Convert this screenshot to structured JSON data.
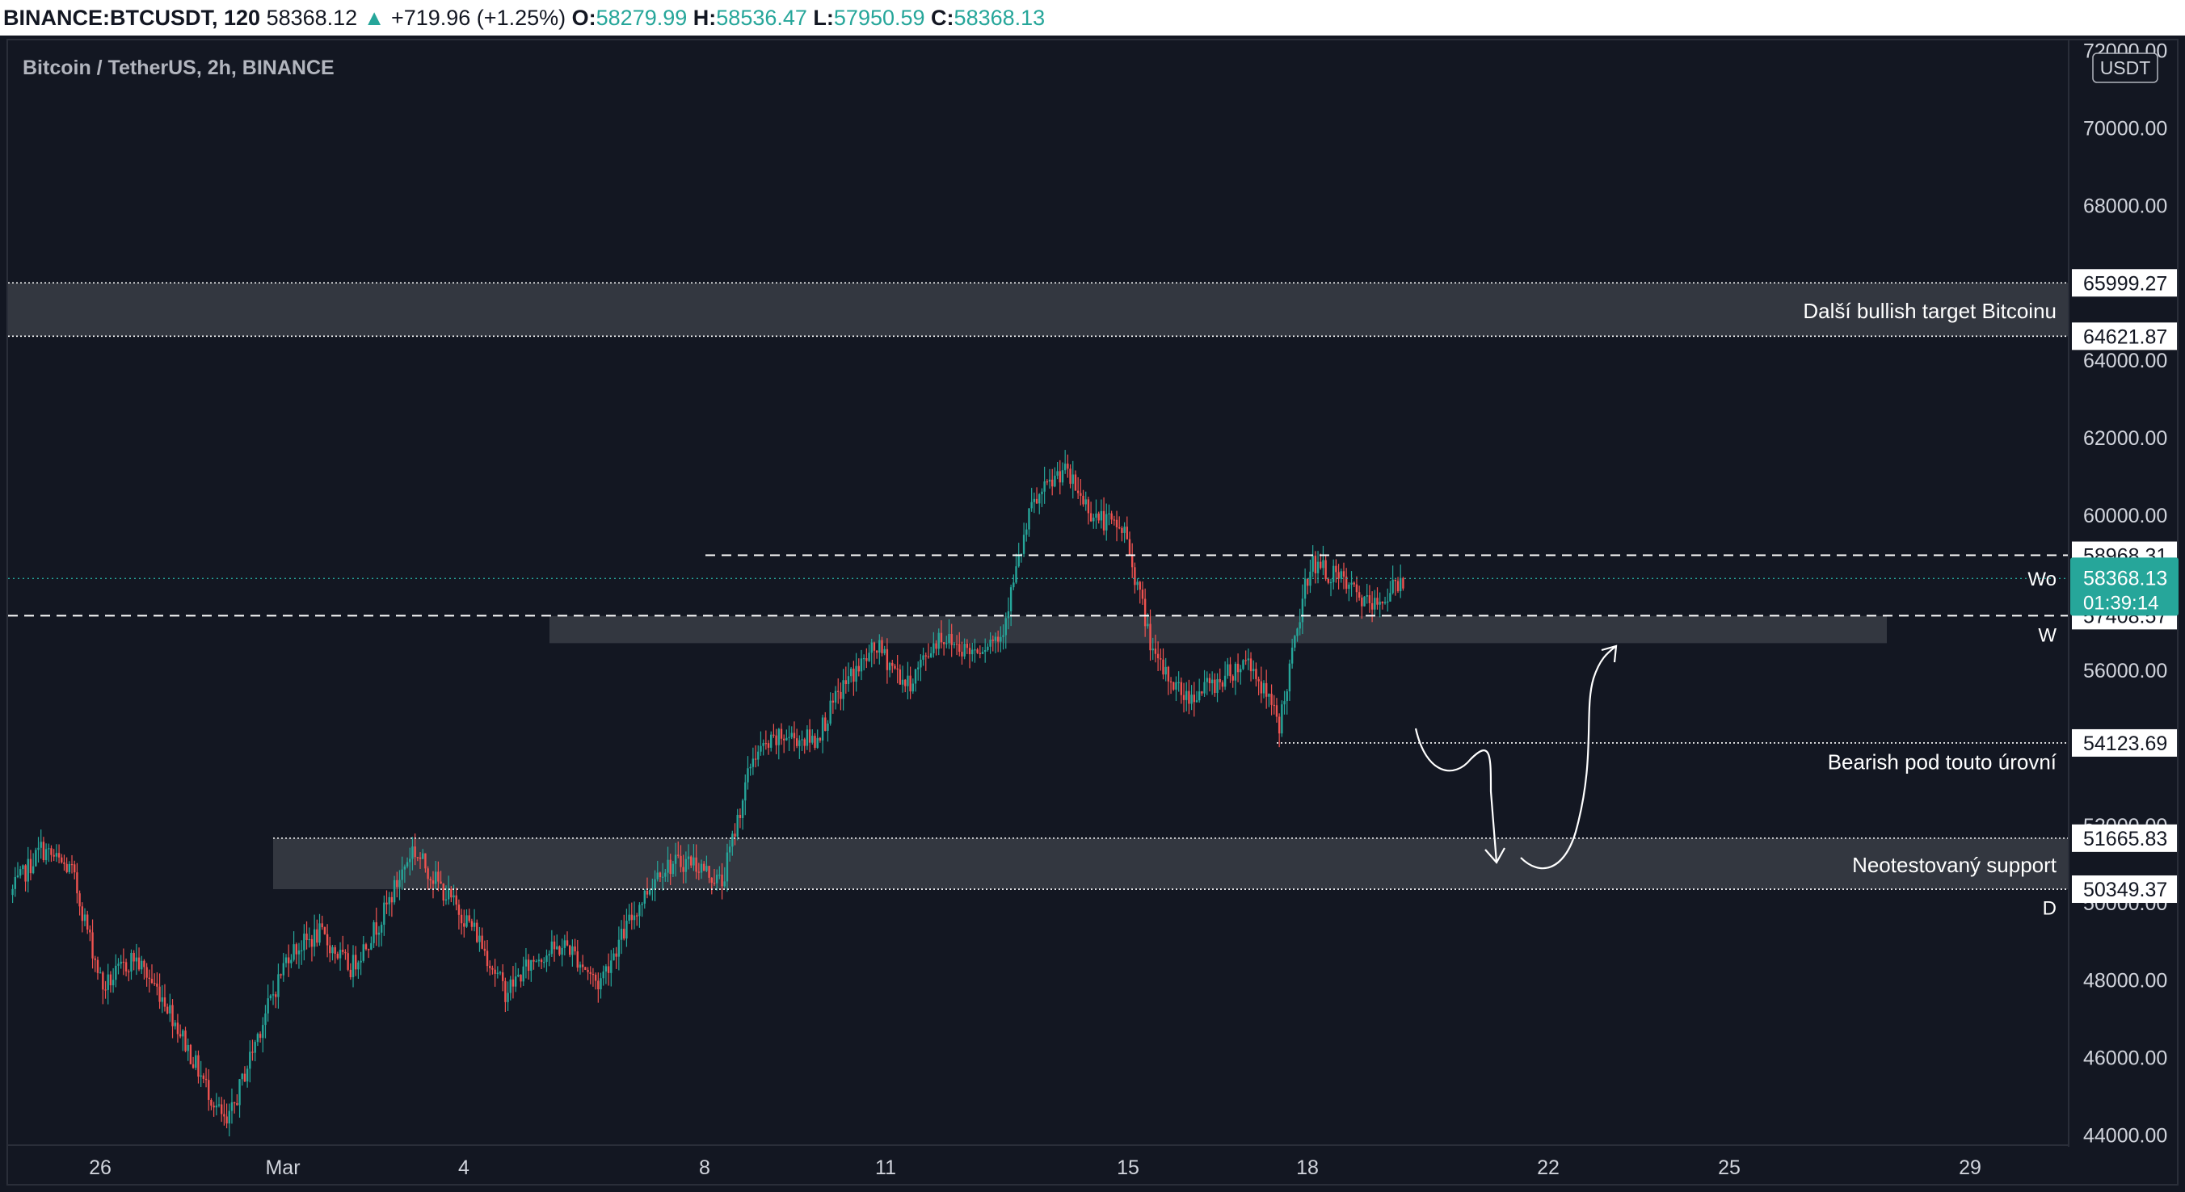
{
  "header": {
    "symbol": "BINANCE:BTCUSDT, 120",
    "last": "58368.12",
    "change_icon": "triangle-up-icon",
    "change": "+719.96 (+1.25%)",
    "o_label": "O:",
    "o": "58279.99",
    "h_label": "H:",
    "h": "58536.47",
    "l_label": "L:",
    "l": "57950.59",
    "c_label": "C:",
    "c": "58368.13"
  },
  "pane_title": "Bitcoin / TetherUS, 2h, BINANCE",
  "colors": {
    "background": "#131722",
    "up": "#26a69a",
    "down": "#ef5350",
    "zone": "#3a3d45",
    "axis_text": "#d1d4dc",
    "label_bg": "#ffffff"
  },
  "chart_data": {
    "type": "candlestick",
    "currency_label": "USDT",
    "ylim": [
      43700,
      72300
    ],
    "y_ticks": [
      "72000.00",
      "70000.00",
      "68000.00",
      "64000.00",
      "62000.00",
      "60000.00",
      "56000.00",
      "52000.00",
      "50000.00",
      "48000.00",
      "46000.00",
      "44000.00"
    ],
    "x_ticks": [
      "26",
      "Mar",
      "4",
      "8",
      "11",
      "15",
      "18",
      "22",
      "25",
      "29"
    ],
    "series_keypoints": [
      {
        "t": 0,
        "p": 50200
      },
      {
        "t": 12,
        "p": 51400
      },
      {
        "t": 24,
        "p": 50800
      },
      {
        "t": 36,
        "p": 47800
      },
      {
        "t": 48,
        "p": 48600
      },
      {
        "t": 60,
        "p": 47500
      },
      {
        "t": 72,
        "p": 45800
      },
      {
        "t": 84,
        "p": 44200
      },
      {
        "t": 96,
        "p": 46600
      },
      {
        "t": 108,
        "p": 48700
      },
      {
        "t": 120,
        "p": 49200
      },
      {
        "t": 132,
        "p": 48300
      },
      {
        "t": 144,
        "p": 49600
      },
      {
        "t": 156,
        "p": 51400
      },
      {
        "t": 168,
        "p": 50300
      },
      {
        "t": 180,
        "p": 49300
      },
      {
        "t": 192,
        "p": 47700
      },
      {
        "t": 204,
        "p": 48600
      },
      {
        "t": 216,
        "p": 48900
      },
      {
        "t": 228,
        "p": 47900
      },
      {
        "t": 240,
        "p": 49500
      },
      {
        "t": 252,
        "p": 50900
      },
      {
        "t": 264,
        "p": 51100
      },
      {
        "t": 276,
        "p": 50500
      },
      {
        "t": 288,
        "p": 53800
      },
      {
        "t": 300,
        "p": 54300
      },
      {
        "t": 312,
        "p": 54200
      },
      {
        "t": 324,
        "p": 55700
      },
      {
        "t": 336,
        "p": 56600
      },
      {
        "t": 348,
        "p": 55600
      },
      {
        "t": 360,
        "p": 56900
      },
      {
        "t": 372,
        "p": 56500
      },
      {
        "t": 384,
        "p": 56900
      },
      {
        "t": 396,
        "p": 60200
      },
      {
        "t": 408,
        "p": 61200
      },
      {
        "t": 420,
        "p": 60000
      },
      {
        "t": 432,
        "p": 59600
      },
      {
        "t": 444,
        "p": 56200
      },
      {
        "t": 456,
        "p": 55300
      },
      {
        "t": 468,
        "p": 55700
      },
      {
        "t": 480,
        "p": 56300
      },
      {
        "t": 492,
        "p": 54600
      },
      {
        "t": 504,
        "p": 58800
      },
      {
        "t": 516,
        "p": 58300
      },
      {
        "t": 528,
        "p": 57600
      },
      {
        "t": 540,
        "p": 58368
      }
    ],
    "horizontal_levels": [
      {
        "label": "65999.27",
        "price": 65999.27,
        "style": "dotted"
      },
      {
        "label": "64621.87",
        "price": 64621.87,
        "style": "dotted"
      },
      {
        "label": "58968.31",
        "price": 58968.31,
        "style": "dashed"
      },
      {
        "label": "57408.57",
        "price": 57408.57,
        "style": "dashed"
      },
      {
        "label": "54123.69",
        "price": 54123.69,
        "style": "dotted"
      },
      {
        "label": "51665.83",
        "price": 51665.83,
        "style": "dotted"
      },
      {
        "label": "50349.37",
        "price": 50349.37,
        "style": "dotted"
      }
    ],
    "last_price": {
      "value": "58368.13",
      "countdown": "01:39:14",
      "price": 58368.13
    },
    "zones": [
      {
        "name": "bullish-target-zone",
        "from_price": 64621.87,
        "to_price": 65999.27
      },
      {
        "name": "resistance-zone",
        "from_price": 56700,
        "to_price": 57400
      },
      {
        "name": "support-zone",
        "from_price": 50349.37,
        "to_price": 51665.83
      }
    ],
    "annotations": [
      {
        "text": "Další bullish target Bitcoinu",
        "price": 65300
      },
      {
        "text": "Bearish pod touto úrovní",
        "price": 53650
      },
      {
        "text": "Neotestovaný support",
        "price": 51000
      }
    ],
    "level_tags": [
      {
        "text": "Wo",
        "price": 58400
      },
      {
        "text": "W",
        "price": 56950
      },
      {
        "text": "D",
        "price": 49900
      }
    ]
  }
}
